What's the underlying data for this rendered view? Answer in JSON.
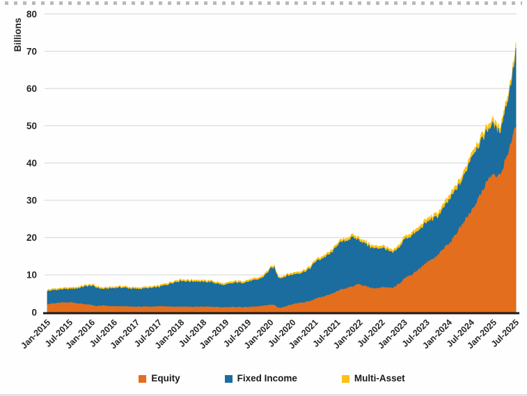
{
  "chart_data": {
    "type": "area",
    "stacked": true,
    "title": "",
    "xlabel": "",
    "ylabel": "Billions",
    "ylim": [
      0,
      80
    ],
    "ytick_step": 10,
    "ytick_labels": [
      "0",
      "10",
      "20",
      "30",
      "40",
      "50",
      "60",
      "70",
      "80"
    ],
    "grid": "horizontal",
    "legend_position": "bottom",
    "x_unit": "month",
    "x_range": [
      "Jan-2015",
      "Jul-2025"
    ],
    "x_tick_labels": [
      "Jan-2015",
      "Jul-2015",
      "Jan-2016",
      "Jul-2016",
      "Jan-2017",
      "Jul-2017",
      "Jan-2018",
      "Jul-2018",
      "Jan-2019",
      "Jul-2019",
      "Jan-2020",
      "Jul-2020",
      "Jan-2021",
      "Jul-2021",
      "Jan-2022",
      "Jul-2022",
      "Jan-2023",
      "Jul-2023",
      "Jan-2024",
      "Jul-2024",
      "Jan-2025",
      "Jul-2025"
    ],
    "series": [
      {
        "name": "Equity",
        "color": "#E36E1E",
        "values": [
          2.1,
          2.2,
          2.3,
          2.4,
          2.5,
          2.5,
          2.6,
          2.5,
          2.3,
          2.2,
          2.1,
          2.0,
          1.8,
          1.6,
          1.6,
          1.7,
          1.6,
          1.5,
          1.5,
          1.5,
          1.5,
          1.5,
          1.4,
          1.4,
          1.4,
          1.4,
          1.4,
          1.4,
          1.4,
          1.5,
          1.5,
          1.5,
          1.5,
          1.5,
          1.4,
          1.4,
          1.4,
          1.4,
          1.4,
          1.3,
          1.4,
          1.4,
          1.4,
          1.4,
          1.4,
          1.3,
          1.3,
          1.2,
          1.3,
          1.3,
          1.3,
          1.3,
          1.3,
          1.3,
          1.3,
          1.4,
          1.4,
          1.5,
          1.6,
          1.8,
          1.9,
          1.9,
          1.2,
          1.1,
          1.5,
          1.8,
          2.1,
          2.3,
          2.4,
          2.5,
          2.8,
          3.0,
          3.5,
          3.8,
          4.0,
          4.3,
          4.6,
          5.0,
          5.6,
          6.0,
          6.2,
          6.6,
          6.9,
          7.2,
          7.5,
          7.0,
          6.8,
          6.5,
          6.3,
          6.4,
          6.6,
          6.5,
          6.4,
          6.5,
          7.2,
          7.9,
          9.0,
          9.5,
          10.0,
          10.8,
          11.5,
          12.3,
          13.1,
          13.8,
          14.5,
          15.2,
          16.4,
          17.4,
          18.3,
          19.5,
          21.0,
          22.5,
          24.0,
          25.5,
          27.0,
          28.7,
          30.5,
          32.5,
          34.5,
          36.0,
          37.0,
          36.0,
          37.0,
          40.0,
          43.0,
          46.5,
          49.5
        ]
      },
      {
        "name": "Fixed Income",
        "color": "#1A6D9E",
        "values": [
          3.5,
          3.5,
          3.6,
          3.5,
          3.6,
          3.5,
          3.5,
          3.7,
          4.0,
          4.3,
          4.7,
          4.9,
          5.2,
          5.0,
          4.7,
          4.4,
          4.6,
          4.8,
          4.9,
          5.0,
          5.0,
          5.0,
          4.9,
          4.8,
          4.7,
          4.8,
          4.9,
          4.9,
          5.0,
          5.0,
          5.15,
          5.45,
          5.75,
          6.05,
          6.55,
          6.75,
          6.95,
          6.85,
          6.75,
          6.85,
          6.85,
          6.65,
          6.55,
          6.65,
          6.55,
          6.45,
          6.25,
          5.95,
          5.9,
          6.2,
          6.4,
          6.6,
          6.4,
          6.7,
          6.8,
          6.9,
          7.1,
          7.3,
          7.7,
          8.5,
          9.6,
          9.9,
          8.2,
          8.0,
          8.05,
          8.0,
          7.9,
          7.95,
          8.05,
          8.25,
          8.4,
          8.9,
          9.9,
          10.1,
          10.35,
          10.55,
          10.9,
          11.3,
          12.5,
          12.5,
          12.7,
          12.85,
          12.95,
          12.35,
          11.75,
          11.5,
          11.1,
          10.8,
          10.6,
          10.7,
          10.6,
          10.3,
          9.7,
          9.2,
          9.35,
          9.8,
          10.4,
          10.45,
          10.4,
          10.3,
          10.35,
          10.7,
          10.8,
          10.7,
          10.5,
          10.3,
          10.5,
          10.9,
          11.5,
          11.8,
          11.8,
          11.7,
          12.2,
          13.2,
          14.7,
          14.5,
          14.2,
          13.6,
          13.6,
          13.6,
          13.1,
          12.2,
          12.1,
          13.6,
          14.5,
          16.5,
          20.0
        ]
      },
      {
        "name": "Multi-Asset",
        "color": "#FDC114",
        "values": [
          0.4,
          0.4,
          0.4,
          0.4,
          0.4,
          0.4,
          0.4,
          0.4,
          0.4,
          0.4,
          0.4,
          0.4,
          0.4,
          0.4,
          0.4,
          0.4,
          0.4,
          0.4,
          0.4,
          0.4,
          0.4,
          0.4,
          0.4,
          0.4,
          0.4,
          0.4,
          0.4,
          0.4,
          0.4,
          0.4,
          0.45,
          0.45,
          0.45,
          0.45,
          0.45,
          0.45,
          0.45,
          0.45,
          0.45,
          0.45,
          0.45,
          0.45,
          0.45,
          0.45,
          0.45,
          0.45,
          0.45,
          0.45,
          0.5,
          0.5,
          0.5,
          0.5,
          0.5,
          0.5,
          0.5,
          0.5,
          0.5,
          0.5,
          0.5,
          0.5,
          0.5,
          0.5,
          0.4,
          0.4,
          0.45,
          0.5,
          0.5,
          0.55,
          0.55,
          0.55,
          0.6,
          0.6,
          0.6,
          0.6,
          0.65,
          0.65,
          0.7,
          0.7,
          0.7,
          0.7,
          0.7,
          0.75,
          0.75,
          0.75,
          0.75,
          0.7,
          0.7,
          0.7,
          0.7,
          0.7,
          0.7,
          0.7,
          0.7,
          0.7,
          0.75,
          0.8,
          0.8,
          0.85,
          0.9,
          0.9,
          0.95,
          1.0,
          1.0,
          1.0,
          1.0,
          1.1,
          1.1,
          1.2,
          1.2,
          1.2,
          1.2,
          1.3,
          1.3,
          1.3,
          1.3,
          1.3,
          1.3,
          1.4,
          1.4,
          1.4,
          1.4,
          1.3,
          1.4,
          1.4,
          1.5,
          1.5,
          1.5
        ]
      }
    ]
  },
  "colors": {
    "gridline": "#D9D9D9",
    "axis_line": "#1B1B1B",
    "label_text": "#262626",
    "background": "#FFFFFF"
  }
}
